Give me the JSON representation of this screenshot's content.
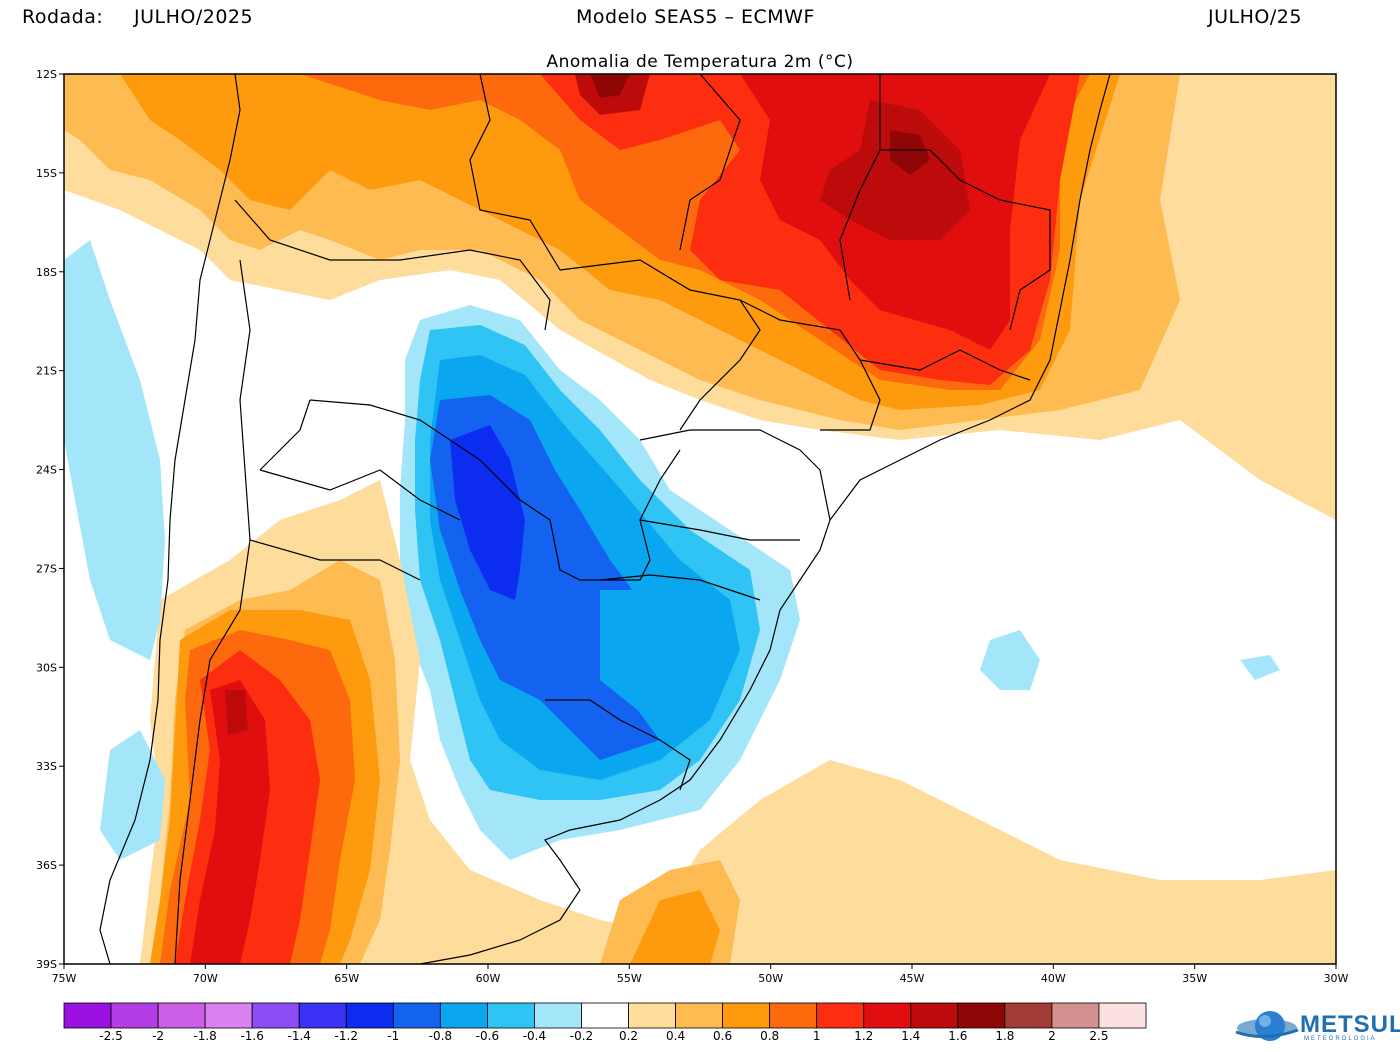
{
  "header": {
    "rodada_label": "Rodada:",
    "rodada_value": "JULHO/2025",
    "model": "Modelo SEAS5 – ECMWF",
    "target": "JULHO/25"
  },
  "subtitle": "Anomalia de Temperatura 2m (°C)",
  "map": {
    "lon_range": [
      -75,
      -30
    ],
    "lat_range": [
      -39,
      -12
    ],
    "lat_ticks": [
      "12S",
      "15S",
      "18S",
      "21S",
      "24S",
      "27S",
      "30S",
      "33S",
      "36S",
      "39S"
    ],
    "lon_ticks": [
      "75W",
      "70W",
      "65W",
      "60W",
      "55W",
      "50W",
      "45W",
      "40W",
      "35W",
      "30W"
    ],
    "background_color": "#ffffff",
    "anomaly_regions": [
      {
        "name": "north-warm",
        "value": 0.6
      },
      {
        "name": "southeast-brazil-warm",
        "value": 1.6
      },
      {
        "name": "paraguay-parana-cold",
        "value": -1.2
      },
      {
        "name": "rio-grande-sul-cold",
        "value": -0.8
      },
      {
        "name": "central-argentina-warm",
        "value": 1.4
      },
      {
        "name": "south-atlantic-warm",
        "value": 0.4
      }
    ]
  },
  "colorbar": {
    "colors": [
      "#9a10e0",
      "#b33ee6",
      "#cc5fe8",
      "#dc82f0",
      "#8c4cf7",
      "#3a32f5",
      "#0c2df0",
      "#1363f0",
      "#0aa6f0",
      "#30c4f5",
      "#a3e6fa",
      "#ffffff",
      "#fddc9c",
      "#fdbb51",
      "#fd9a0e",
      "#fd6a0d",
      "#fd2d0f",
      "#e00e0e",
      "#bd0b0b",
      "#8f0606",
      "#a33c36",
      "#d39190",
      "#fbe1e1"
    ],
    "labels": [
      "-2.5",
      "-2",
      "-1.8",
      "-1.6",
      "-1.4",
      "-1.2",
      "-1",
      "-0.8",
      "-0.6",
      "-0.4",
      "-0.2",
      "0.2",
      "0.4",
      "0.6",
      "0.8",
      "1",
      "1.2",
      "1.4",
      "1.6",
      "1.8",
      "2",
      "2.5"
    ]
  },
  "logo": {
    "text": "METSUL",
    "sub": "METEOROLOGIA"
  }
}
